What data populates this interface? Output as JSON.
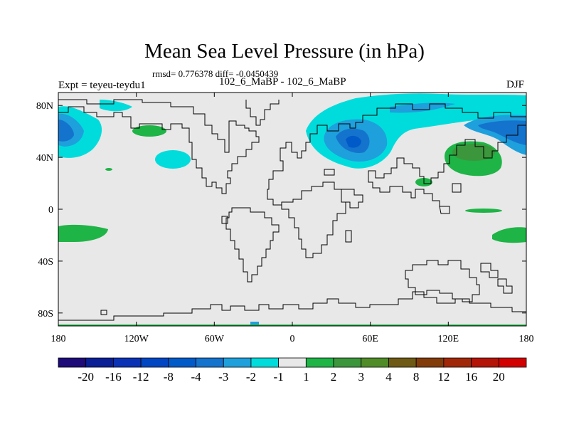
{
  "title": "Mean Sea Level Pressure (in hPa)",
  "stats": "rmsd= 0.776378 diff= -0.0450439",
  "experiment": "Expt = teyeu-teydu1",
  "cases": "102_6_MaBP - 102_6_MaBP",
  "season": "DJF",
  "map": {
    "lon_range": [
      -180,
      180
    ],
    "lat_range": [
      -90,
      90
    ],
    "x_ticks": [
      "180",
      "120W",
      "60W",
      "0",
      "60E",
      "120E",
      "180"
    ],
    "y_ticks": [
      "80N",
      "40N",
      "0",
      "40S",
      "80S"
    ],
    "land_color": "#e8e8e8"
  },
  "colorbar": {
    "labels": [
      "-20",
      "-16",
      "-12",
      "-8",
      "-4",
      "-3",
      "-2",
      "-1",
      "1",
      "2",
      "3",
      "4",
      "8",
      "12",
      "16",
      "20"
    ],
    "colors": [
      "#1e0a78",
      "#0a1e96",
      "#0a32b4",
      "#0046c3",
      "#005ac8",
      "#1473cd",
      "#1ea0dc",
      "#00dcdc",
      "#e8e8e8",
      "#1eb446",
      "#3c963c",
      "#508c28",
      "#6e5a14",
      "#823c0a",
      "#a02808",
      "#b41408",
      "#d20000"
    ]
  }
}
